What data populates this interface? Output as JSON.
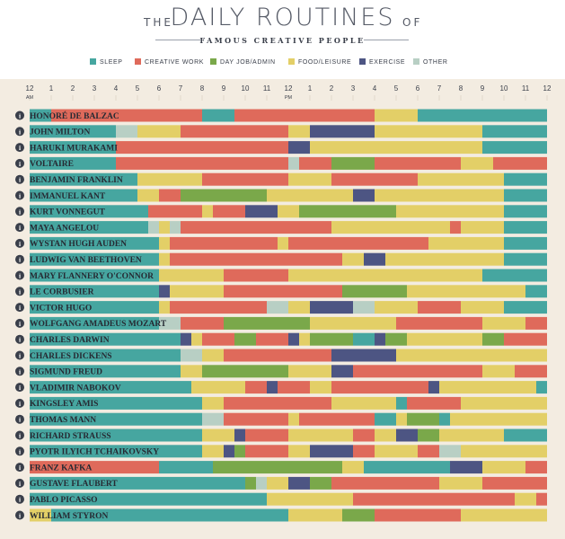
{
  "header": {
    "the": "THE",
    "title": "DAILY ROUTINES",
    "of": "OF",
    "subtitle": "FAMOUS CREATIVE PEOPLE"
  },
  "legend": [
    {
      "key": "sleep",
      "label": "SLEEP",
      "color": "#46a6a0"
    },
    {
      "key": "creative",
      "label": "CREATIVE WORK",
      "color": "#df6a5b"
    },
    {
      "key": "day",
      "label": "DAY JOB/ADMIN",
      "color": "#7aa84a"
    },
    {
      "key": "food",
      "label": "FOOD/LEISURE",
      "color": "#e3cf67"
    },
    {
      "key": "exercise",
      "label": "EXERCISE",
      "color": "#4d5583"
    },
    {
      "key": "other",
      "label": "OTHER",
      "color": "#b8cfc4"
    }
  ],
  "chart_data": {
    "type": "bar",
    "orientation": "horizontal-stacked-timeline",
    "x_unit": "hour of day (0 = 12 AM)",
    "xlim": [
      0,
      24
    ],
    "tick_labels": [
      "12",
      "1",
      "2",
      "3",
      "4",
      "5",
      "6",
      "7",
      "8",
      "9",
      "10",
      "11",
      "12",
      "1",
      "2",
      "3",
      "4",
      "5",
      "6",
      "7",
      "8",
      "9",
      "10",
      "11",
      "12"
    ],
    "tick_sub": {
      "am": "AM",
      "pm": "PM"
    },
    "info_icon": "i",
    "people": [
      {
        "name": "HONORÉ DE BALZAC",
        "segments": [
          [
            0,
            1,
            "sleep"
          ],
          [
            1,
            8,
            "creative"
          ],
          [
            8,
            9.5,
            "sleep"
          ],
          [
            9.5,
            16,
            "creative"
          ],
          [
            16,
            18,
            "food"
          ],
          [
            18,
            24,
            "sleep"
          ]
        ]
      },
      {
        "name": "JOHN MILTON",
        "segments": [
          [
            0,
            4,
            "sleep"
          ],
          [
            4,
            5,
            "other"
          ],
          [
            5,
            7,
            "food"
          ],
          [
            7,
            12,
            "creative"
          ],
          [
            12,
            13,
            "food"
          ],
          [
            13,
            16,
            "exercise"
          ],
          [
            16,
            21,
            "food"
          ],
          [
            21,
            24,
            "sleep"
          ]
        ]
      },
      {
        "name": "HARUKI MURAKAMI",
        "segments": [
          [
            0,
            4,
            "sleep"
          ],
          [
            4,
            12,
            "creative"
          ],
          [
            12,
            13,
            "exercise"
          ],
          [
            13,
            21,
            "food"
          ],
          [
            21,
            24,
            "sleep"
          ]
        ]
      },
      {
        "name": "VOLTAIRE",
        "segments": [
          [
            0,
            4,
            "sleep"
          ],
          [
            4,
            12,
            "creative"
          ],
          [
            12,
            12.5,
            "other"
          ],
          [
            12.5,
            14,
            "creative"
          ],
          [
            14,
            16,
            "day"
          ],
          [
            16,
            20,
            "creative"
          ],
          [
            20,
            21.5,
            "food"
          ],
          [
            21.5,
            24,
            "creative"
          ]
        ]
      },
      {
        "name": "BENJAMIN FRANKLIN",
        "segments": [
          [
            0,
            5,
            "sleep"
          ],
          [
            5,
            8,
            "food"
          ],
          [
            8,
            12,
            "creative"
          ],
          [
            12,
            14,
            "food"
          ],
          [
            14,
            18,
            "creative"
          ],
          [
            18,
            22,
            "food"
          ],
          [
            22,
            24,
            "sleep"
          ]
        ]
      },
      {
        "name": "IMMANUEL KANT",
        "segments": [
          [
            0,
            5,
            "sleep"
          ],
          [
            5,
            6,
            "food"
          ],
          [
            6,
            7,
            "creative"
          ],
          [
            7,
            11,
            "day"
          ],
          [
            11,
            15,
            "food"
          ],
          [
            15,
            16,
            "exercise"
          ],
          [
            16,
            22,
            "food"
          ],
          [
            22,
            24,
            "sleep"
          ]
        ]
      },
      {
        "name": "KURT VONNEGUT",
        "segments": [
          [
            0,
            5.5,
            "sleep"
          ],
          [
            5.5,
            8,
            "creative"
          ],
          [
            8,
            8.5,
            "food"
          ],
          [
            8.5,
            10,
            "creative"
          ],
          [
            10,
            11.5,
            "exercise"
          ],
          [
            11.5,
            12.5,
            "food"
          ],
          [
            12.5,
            17,
            "day"
          ],
          [
            17,
            22,
            "food"
          ],
          [
            22,
            24,
            "sleep"
          ]
        ]
      },
      {
        "name": "MAYA ANGELOU",
        "segments": [
          [
            0,
            5.5,
            "sleep"
          ],
          [
            5.5,
            6,
            "other"
          ],
          [
            6,
            6.5,
            "food"
          ],
          [
            6.5,
            7,
            "other"
          ],
          [
            7,
            14,
            "creative"
          ],
          [
            14,
            19.5,
            "food"
          ],
          [
            19.5,
            20,
            "creative"
          ],
          [
            20,
            22,
            "food"
          ],
          [
            22,
            24,
            "sleep"
          ]
        ]
      },
      {
        "name": "WYSTAN HUGH AUDEN",
        "segments": [
          [
            0,
            6,
            "sleep"
          ],
          [
            6,
            6.5,
            "food"
          ],
          [
            6.5,
            11.5,
            "creative"
          ],
          [
            11.5,
            12,
            "food"
          ],
          [
            12,
            18.5,
            "creative"
          ],
          [
            18.5,
            22,
            "food"
          ],
          [
            22,
            24,
            "sleep"
          ]
        ]
      },
      {
        "name": "LUDWIG VAN BEETHOVEN",
        "segments": [
          [
            0,
            6,
            "sleep"
          ],
          [
            6,
            6.5,
            "food"
          ],
          [
            6.5,
            14.5,
            "creative"
          ],
          [
            14.5,
            15.5,
            "food"
          ],
          [
            15.5,
            16.5,
            "exercise"
          ],
          [
            16.5,
            22,
            "food"
          ],
          [
            22,
            24,
            "sleep"
          ]
        ]
      },
      {
        "name": "MARY FLANNERY O'CONNOR",
        "segments": [
          [
            0,
            6,
            "sleep"
          ],
          [
            6,
            9,
            "food"
          ],
          [
            9,
            12,
            "creative"
          ],
          [
            12,
            21,
            "food"
          ],
          [
            21,
            24,
            "sleep"
          ]
        ]
      },
      {
        "name": "LE CORBUSIER",
        "segments": [
          [
            0,
            6,
            "sleep"
          ],
          [
            6,
            6.5,
            "exercise"
          ],
          [
            6.5,
            9,
            "food"
          ],
          [
            9,
            14.5,
            "creative"
          ],
          [
            14.5,
            17.5,
            "day"
          ],
          [
            17.5,
            23,
            "food"
          ],
          [
            23,
            24,
            "sleep"
          ]
        ]
      },
      {
        "name": "VICTOR HUGO",
        "segments": [
          [
            0,
            6,
            "sleep"
          ],
          [
            6,
            6.5,
            "food"
          ],
          [
            6.5,
            11,
            "creative"
          ],
          [
            11,
            12,
            "other"
          ],
          [
            12,
            13,
            "food"
          ],
          [
            13,
            15,
            "exercise"
          ],
          [
            15,
            16,
            "other"
          ],
          [
            16,
            18,
            "food"
          ],
          [
            18,
            20,
            "creative"
          ],
          [
            20,
            22,
            "food"
          ],
          [
            22,
            24,
            "sleep"
          ]
        ]
      },
      {
        "name": "WOLFGANG AMADEUS MOZART",
        "segments": [
          [
            0,
            6,
            "sleep"
          ],
          [
            6,
            7,
            "other"
          ],
          [
            7,
            9,
            "creative"
          ],
          [
            9,
            13,
            "day"
          ],
          [
            13,
            17,
            "food"
          ],
          [
            17,
            21,
            "creative"
          ],
          [
            21,
            23,
            "food"
          ],
          [
            23,
            24,
            "creative"
          ]
        ]
      },
      {
        "name": "CHARLES DARWIN",
        "segments": [
          [
            0,
            7,
            "sleep"
          ],
          [
            7,
            7.5,
            "exercise"
          ],
          [
            7.5,
            8,
            "food"
          ],
          [
            8,
            9.5,
            "creative"
          ],
          [
            9.5,
            10.5,
            "day"
          ],
          [
            10.5,
            12,
            "creative"
          ],
          [
            12,
            12.5,
            "exercise"
          ],
          [
            12.5,
            13,
            "food"
          ],
          [
            13,
            15,
            "day"
          ],
          [
            15,
            16,
            "sleep"
          ],
          [
            16,
            16.5,
            "exercise"
          ],
          [
            16.5,
            17.5,
            "day"
          ],
          [
            17.5,
            21,
            "food"
          ],
          [
            21,
            22,
            "day"
          ],
          [
            22,
            24,
            "creative"
          ]
        ]
      },
      {
        "name": "CHARLES DICKENS",
        "segments": [
          [
            0,
            7,
            "sleep"
          ],
          [
            7,
            8,
            "other"
          ],
          [
            8,
            9,
            "food"
          ],
          [
            9,
            14,
            "creative"
          ],
          [
            14,
            17,
            "exercise"
          ],
          [
            17,
            24,
            "food"
          ]
        ]
      },
      {
        "name": "SIGMUND FREUD",
        "segments": [
          [
            0,
            7,
            "sleep"
          ],
          [
            7,
            8,
            "food"
          ],
          [
            8,
            12,
            "day"
          ],
          [
            12,
            14,
            "food"
          ],
          [
            14,
            15,
            "exercise"
          ],
          [
            15,
            21,
            "creative"
          ],
          [
            21,
            22.5,
            "food"
          ],
          [
            22.5,
            24,
            "creative"
          ]
        ]
      },
      {
        "name": "VLADIMIR NABOKOV",
        "segments": [
          [
            0,
            7.5,
            "sleep"
          ],
          [
            7.5,
            10,
            "food"
          ],
          [
            10,
            11,
            "creative"
          ],
          [
            11,
            11.5,
            "exercise"
          ],
          [
            11.5,
            13,
            "creative"
          ],
          [
            13,
            14,
            "food"
          ],
          [
            14,
            18.5,
            "creative"
          ],
          [
            18.5,
            19,
            "exercise"
          ],
          [
            19,
            23.5,
            "food"
          ],
          [
            23.5,
            24,
            "sleep"
          ]
        ]
      },
      {
        "name": "KINGSLEY AMIS",
        "segments": [
          [
            0,
            8,
            "sleep"
          ],
          [
            8,
            9,
            "food"
          ],
          [
            9,
            14,
            "creative"
          ],
          [
            14,
            17,
            "food"
          ],
          [
            17,
            17.5,
            "sleep"
          ],
          [
            17.5,
            20,
            "creative"
          ],
          [
            20,
            24,
            "food"
          ]
        ]
      },
      {
        "name": "THOMAS MANN",
        "segments": [
          [
            0,
            8,
            "sleep"
          ],
          [
            8,
            9,
            "other"
          ],
          [
            9,
            12,
            "creative"
          ],
          [
            12,
            12.5,
            "food"
          ],
          [
            12.5,
            16,
            "creative"
          ],
          [
            16,
            17,
            "sleep"
          ],
          [
            17,
            17.5,
            "food"
          ],
          [
            17.5,
            19,
            "day"
          ],
          [
            19,
            19.5,
            "sleep"
          ],
          [
            19.5,
            24,
            "food"
          ]
        ]
      },
      {
        "name": "RICHARD STRAUSS",
        "segments": [
          [
            0,
            8,
            "sleep"
          ],
          [
            8,
            9.5,
            "food"
          ],
          [
            9.5,
            10,
            "exercise"
          ],
          [
            10,
            12,
            "creative"
          ],
          [
            12,
            15,
            "food"
          ],
          [
            15,
            16,
            "creative"
          ],
          [
            16,
            17,
            "food"
          ],
          [
            17,
            18,
            "exercise"
          ],
          [
            18,
            19,
            "day"
          ],
          [
            19,
            22,
            "food"
          ],
          [
            22,
            24,
            "sleep"
          ]
        ]
      },
      {
        "name": "PYOTR ILYICH TCHAIKOVSKY",
        "segments": [
          [
            0,
            8,
            "sleep"
          ],
          [
            8,
            9,
            "food"
          ],
          [
            9,
            9.5,
            "exercise"
          ],
          [
            9.5,
            10,
            "day"
          ],
          [
            10,
            12,
            "creative"
          ],
          [
            12,
            13,
            "food"
          ],
          [
            13,
            15,
            "exercise"
          ],
          [
            15,
            16,
            "creative"
          ],
          [
            16,
            18,
            "food"
          ],
          [
            18,
            19,
            "creative"
          ],
          [
            19,
            20,
            "other"
          ],
          [
            20,
            24,
            "food"
          ]
        ]
      },
      {
        "name": "FRANZ KAFKA",
        "segments": [
          [
            0,
            6,
            "creative"
          ],
          [
            6,
            8.5,
            "sleep"
          ],
          [
            8.5,
            14.5,
            "day"
          ],
          [
            14.5,
            15.5,
            "food"
          ],
          [
            15.5,
            19.5,
            "sleep"
          ],
          [
            19.5,
            21,
            "exercise"
          ],
          [
            21,
            23,
            "food"
          ],
          [
            23,
            24,
            "creative"
          ]
        ]
      },
      {
        "name": "GUSTAVE FLAUBERT",
        "segments": [
          [
            0,
            10,
            "sleep"
          ],
          [
            10,
            10.5,
            "day"
          ],
          [
            10.5,
            11,
            "other"
          ],
          [
            11,
            12,
            "food"
          ],
          [
            12,
            13,
            "exercise"
          ],
          [
            13,
            14,
            "day"
          ],
          [
            14,
            19,
            "creative"
          ],
          [
            19,
            21,
            "food"
          ],
          [
            21,
            24,
            "creative"
          ]
        ]
      },
      {
        "name": "PABLO PICASSO",
        "segments": [
          [
            0,
            11,
            "sleep"
          ],
          [
            11,
            15,
            "food"
          ],
          [
            15,
            22.5,
            "creative"
          ],
          [
            22.5,
            23.5,
            "food"
          ],
          [
            23.5,
            24,
            "creative"
          ]
        ]
      },
      {
        "name": "WILLIAM STYRON",
        "segments": [
          [
            0,
            1,
            "food"
          ],
          [
            1,
            12,
            "sleep"
          ],
          [
            12,
            14.5,
            "food"
          ],
          [
            14.5,
            16,
            "day"
          ],
          [
            16,
            20,
            "creative"
          ],
          [
            20,
            24,
            "food"
          ]
        ]
      }
    ]
  }
}
